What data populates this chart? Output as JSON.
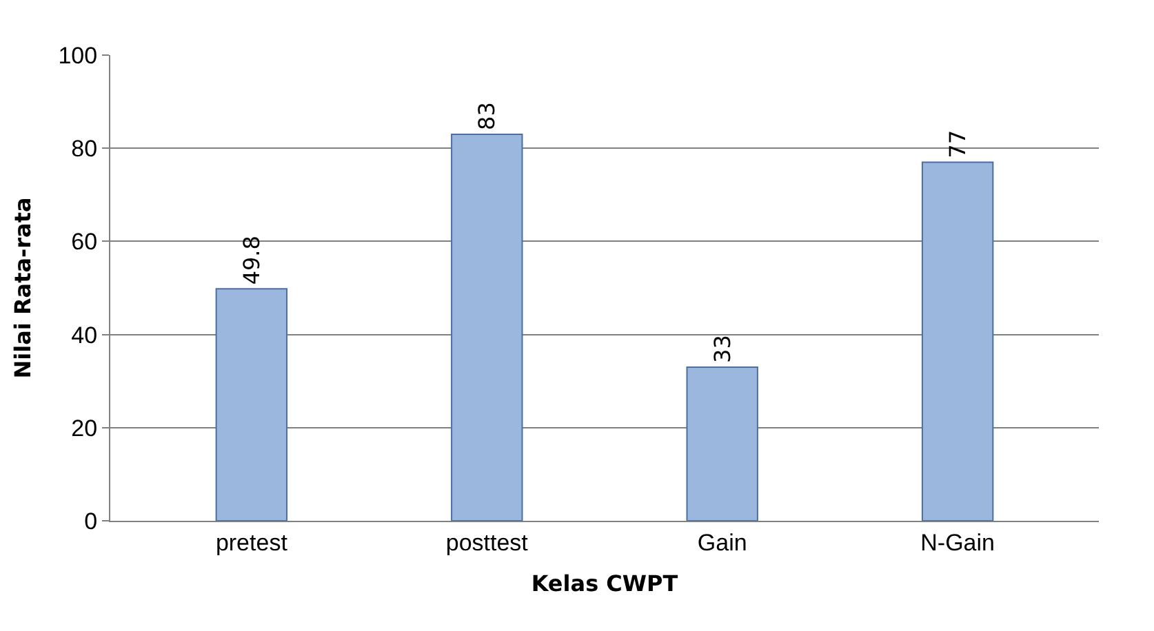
{
  "chart_data": {
    "type": "bar",
    "xlabel": "Kelas CWPT",
    "ylabel": "Nilai Rata-rata",
    "categories": [
      "pretest",
      "posttest",
      "Gain",
      "N-Gain"
    ],
    "values": [
      49.8,
      83,
      33,
      77
    ],
    "color": "#9bb7de",
    "ylim": [
      0,
      100
    ],
    "yticks": [
      0,
      20,
      40,
      60,
      80,
      100
    ],
    "grid": "y",
    "data_labels": true
  }
}
